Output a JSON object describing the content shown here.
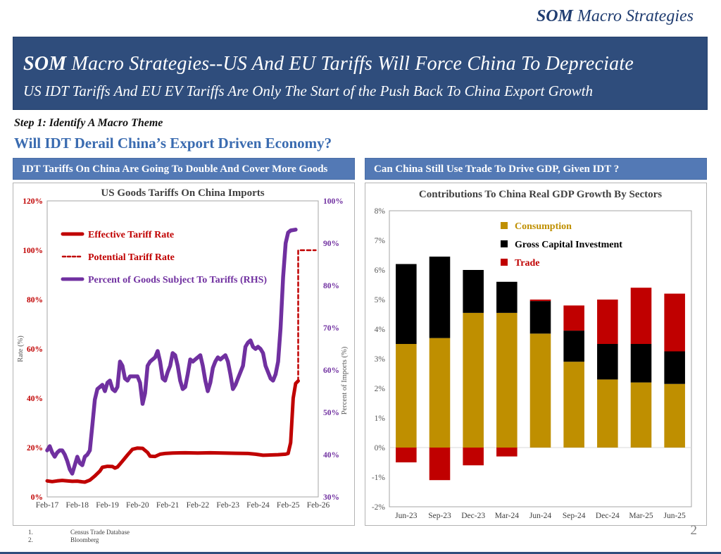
{
  "page": {
    "logo_bold": "SOM",
    "logo_rest": " Macro Strategies",
    "page_number": "2"
  },
  "banner": {
    "title_bold": "SOM",
    "title_rest": " Macro Strategies--US And EU Tariffs Will Force China To Depreciate",
    "subtitle": "US IDT Tariffs And EU EV Tariffs Are Only The Start of the Push Back To China Export Growth"
  },
  "step_line": "Step 1: Identify A Macro Theme",
  "question_line": "Will IDT Derail China’s Export Driven Economy?",
  "left_panel": {
    "header": "IDT Tariffs On China Are Going To Double And Cover More Goods"
  },
  "right_panel": {
    "header": "Can China Still Use Trade To Drive GDP, Given IDT ?"
  },
  "footnotes": [
    {
      "num": "1.",
      "text": "Census Trade Database"
    },
    {
      "num": "2.",
      "text": "Bloomberg"
    }
  ],
  "colors": {
    "banner_navy": "#2F4D7C",
    "header_blue": "#5379B5",
    "logo_navy": "#1F3C70",
    "question_blue": "#3A6BB0",
    "red": "#C00000",
    "purple": "#7030A0",
    "gold": "#BF8F00",
    "black": "#000000",
    "axis_gray": "#595959",
    "title_gray": "#404040",
    "border_gray": "#A6A6A6"
  },
  "chart_data": [
    {
      "type": "line",
      "title": "US Goods Tariffs On China Imports",
      "ylabel_left": "Rate (%)",
      "ylabel_right": "Percent of Imports (%)",
      "x_axis": {
        "unit": "months since Feb-2017",
        "min": 0,
        "max": 108,
        "tick_positions": [
          0,
          12,
          24,
          36,
          48,
          60,
          72,
          84,
          96,
          108
        ],
        "tick_labels": [
          "Feb-17",
          "Feb-18",
          "Feb-19",
          "Feb-20",
          "Feb-21",
          "Feb-22",
          "Feb-23",
          "Feb-24",
          "Feb-25",
          "Feb-26"
        ]
      },
      "y_left": {
        "min": 0,
        "max": 120,
        "step": 20,
        "labels": [
          "0%",
          "20%",
          "40%",
          "60%",
          "80%",
          "100%",
          "120%"
        ],
        "color": "#C00000"
      },
      "y_right": {
        "min": 30,
        "max": 100,
        "step": 10,
        "labels": [
          "30%",
          "40%",
          "50%",
          "60%",
          "70%",
          "80%",
          "90%",
          "100%"
        ],
        "color": "#7030A0"
      },
      "grid": false,
      "legend_position": "upper-left-inside",
      "series": [
        {
          "name": "Effective Tariff Rate",
          "axis": "left",
          "color": "#C00000",
          "style": "solid",
          "width": 5,
          "points": [
            [
              0,
              6.5
            ],
            [
              2,
              6.2
            ],
            [
              4,
              6.5
            ],
            [
              6,
              6.7
            ],
            [
              8,
              6.5
            ],
            [
              10,
              6.3
            ],
            [
              12,
              6.4
            ],
            [
              14,
              6.1
            ],
            [
              15,
              6.0
            ],
            [
              17,
              6.8
            ],
            [
              19,
              8.5
            ],
            [
              21,
              10.5
            ],
            [
              22,
              12.0
            ],
            [
              24,
              12.4
            ],
            [
              26,
              12.3
            ],
            [
              27,
              11.7
            ],
            [
              28,
              12.1
            ],
            [
              30,
              14.5
            ],
            [
              32,
              17.0
            ],
            [
              34,
              19.3
            ],
            [
              36,
              19.8
            ],
            [
              38,
              19.7
            ],
            [
              40,
              18.0
            ],
            [
              41,
              16.5
            ],
            [
              43,
              16.4
            ],
            [
              45,
              17.3
            ],
            [
              47,
              17.6
            ],
            [
              50,
              17.8
            ],
            [
              55,
              17.9
            ],
            [
              60,
              17.8
            ],
            [
              65,
              17.9
            ],
            [
              70,
              17.8
            ],
            [
              75,
              17.7
            ],
            [
              80,
              17.6
            ],
            [
              83,
              17.3
            ],
            [
              86,
              16.9
            ],
            [
              89,
              17.0
            ],
            [
              92,
              17.1
            ],
            [
              95,
              17.3
            ],
            [
              96,
              17.6
            ],
            [
              97,
              22
            ],
            [
              98,
              40
            ],
            [
              99,
              46
            ],
            [
              100,
              47
            ]
          ]
        },
        {
          "name": "Potential Tariff Rate",
          "axis": "left",
          "color": "#C00000",
          "style": "dashed",
          "width": 2.5,
          "points": [
            [
              100,
              47
            ],
            [
              100,
              100
            ],
            [
              107,
              100
            ]
          ]
        },
        {
          "name": "Percent of Goods Subject To Tariffs (RHS)",
          "axis": "right",
          "color": "#7030A0",
          "style": "solid",
          "width": 5.5,
          "points": [
            [
              0,
              41
            ],
            [
              1,
              42
            ],
            [
              2,
              40.5
            ],
            [
              3,
              39.5
            ],
            [
              4,
              40.5
            ],
            [
              5,
              41
            ],
            [
              6,
              41
            ],
            [
              7,
              40
            ],
            [
              8,
              38.5
            ],
            [
              9,
              36.5
            ],
            [
              10,
              35.5
            ],
            [
              11,
              37.5
            ],
            [
              12,
              39.5
            ],
            [
              13,
              38
            ],
            [
              14,
              37.5
            ],
            [
              15,
              39.5
            ],
            [
              16,
              40
            ],
            [
              17,
              41
            ],
            [
              18,
              47
            ],
            [
              19,
              53
            ],
            [
              20,
              55.5
            ],
            [
              21,
              56
            ],
            [
              22,
              56.5
            ],
            [
              23,
              55
            ],
            [
              24,
              57
            ],
            [
              25,
              57.5
            ],
            [
              26,
              55.5
            ],
            [
              27,
              55
            ],
            [
              28,
              56
            ],
            [
              29,
              62
            ],
            [
              30,
              61
            ],
            [
              31,
              58
            ],
            [
              32,
              57.5
            ],
            [
              33,
              58.5
            ],
            [
              34,
              58.5
            ],
            [
              36,
              58.5
            ],
            [
              37,
              57
            ],
            [
              38,
              52
            ],
            [
              39,
              54.5
            ],
            [
              40,
              61
            ],
            [
              41,
              62
            ],
            [
              42,
              62.5
            ],
            [
              43,
              63
            ],
            [
              44,
              64.5
            ],
            [
              45,
              62
            ],
            [
              46,
              58
            ],
            [
              47,
              57.5
            ],
            [
              48,
              59.5
            ],
            [
              49,
              61
            ],
            [
              50,
              64
            ],
            [
              51,
              63.5
            ],
            [
              52,
              61
            ],
            [
              53,
              57.5
            ],
            [
              54,
              55.5
            ],
            [
              55,
              56
            ],
            [
              56,
              59
            ],
            [
              57,
              62.5
            ],
            [
              58,
              62
            ],
            [
              59,
              62.5
            ],
            [
              60,
              63
            ],
            [
              61,
              63.5
            ],
            [
              62,
              61
            ],
            [
              63,
              57.5
            ],
            [
              64,
              55
            ],
            [
              65,
              57
            ],
            [
              66,
              60.5
            ],
            [
              67,
              62
            ],
            [
              68,
              63
            ],
            [
              69,
              62.5
            ],
            [
              70,
              63
            ],
            [
              71,
              63.5
            ],
            [
              72,
              62
            ],
            [
              73,
              59
            ],
            [
              74,
              55.5
            ],
            [
              75,
              56.5
            ],
            [
              76,
              58
            ],
            [
              78,
              61
            ],
            [
              79,
              65.5
            ],
            [
              80,
              66.5
            ],
            [
              81,
              67
            ],
            [
              82,
              65.5
            ],
            [
              83,
              65
            ],
            [
              84,
              65.5
            ],
            [
              85,
              65
            ],
            [
              86,
              64
            ],
            [
              87,
              61
            ],
            [
              88,
              59.5
            ],
            [
              89,
              58
            ],
            [
              90,
              57.5
            ],
            [
              91,
              59
            ],
            [
              92,
              62
            ],
            [
              93,
              70
            ],
            [
              94,
              82
            ],
            [
              95,
              90
            ],
            [
              96,
              92.5
            ],
            [
              97,
              93
            ],
            [
              99,
              93.2
            ]
          ]
        }
      ]
    },
    {
      "type": "bar",
      "stacked": true,
      "title": "Contributions To China Real GDP Growth By Sectors",
      "categories": [
        "Jun-23",
        "Sep-23",
        "Dec-23",
        "Mar-24",
        "Jun-24",
        "Sep-24",
        "Dec-24",
        "Mar-25",
        "Jun-25"
      ],
      "series": [
        {
          "name": "Consumption",
          "color": "#BF8F00",
          "values": [
            3.5,
            3.7,
            4.55,
            4.55,
            3.85,
            2.9,
            2.3,
            2.2,
            2.15
          ]
        },
        {
          "name": "Gross Capital Investment",
          "color": "#000000",
          "values": [
            2.7,
            2.75,
            1.45,
            1.05,
            1.1,
            1.05,
            1.2,
            1.3,
            1.1
          ]
        },
        {
          "name": "Trade",
          "color": "#C00000",
          "values": [
            -0.5,
            -1.1,
            -0.6,
            -0.3,
            0.05,
            0.85,
            1.5,
            1.9,
            1.95
          ]
        }
      ],
      "ylim": [
        -2,
        8
      ],
      "y_step": 1,
      "y_tick_labels": [
        "-2%",
        "-1%",
        "0%",
        "1%",
        "2%",
        "3%",
        "4%",
        "5%",
        "6%",
        "7%",
        "8%"
      ],
      "grid": "zero-line-only",
      "legend_position": "upper-center-inside"
    }
  ]
}
